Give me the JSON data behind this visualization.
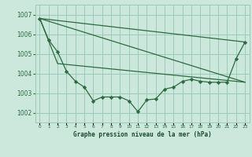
{
  "background_color": "#cce8dc",
  "plot_bg_color": "#cce8dc",
  "grid_color": "#99ccb8",
  "line_color": "#2d6a3f",
  "marker_color": "#2d6a3f",
  "xlabel": "Graphe pression niveau de la mer (hPa)",
  "xlabel_color": "#1a4a2a",
  "ylim": [
    1001.5,
    1007.5
  ],
  "xlim": [
    -0.5,
    23.5
  ],
  "yticks": [
    1002,
    1003,
    1004,
    1005,
    1006,
    1007
  ],
  "xticks": [
    0,
    1,
    2,
    3,
    4,
    5,
    6,
    7,
    8,
    9,
    10,
    11,
    12,
    13,
    14,
    15,
    16,
    17,
    18,
    19,
    20,
    21,
    22,
    23
  ],
  "series1_x": [
    0,
    1,
    2,
    3,
    4,
    5,
    6,
    7,
    8,
    9,
    10,
    11,
    12,
    13,
    14,
    15,
    16,
    17,
    18,
    19,
    20,
    21,
    22,
    23
  ],
  "series1_y": [
    1006.8,
    1005.7,
    1005.1,
    1004.1,
    1003.6,
    1003.3,
    1002.6,
    1002.8,
    1002.8,
    1002.8,
    1002.6,
    1002.05,
    1002.65,
    1002.7,
    1003.2,
    1003.3,
    1003.6,
    1003.7,
    1003.6,
    1003.55,
    1003.55,
    1003.55,
    1004.75,
    1005.6
  ],
  "series2_x": [
    0,
    23
  ],
  "series2_y": [
    1006.8,
    1005.6
  ],
  "series3_x": [
    0,
    23
  ],
  "series3_y": [
    1006.8,
    1003.55
  ],
  "series4_x": [
    0,
    2,
    23
  ],
  "series4_y": [
    1006.8,
    1004.5,
    1003.55
  ]
}
